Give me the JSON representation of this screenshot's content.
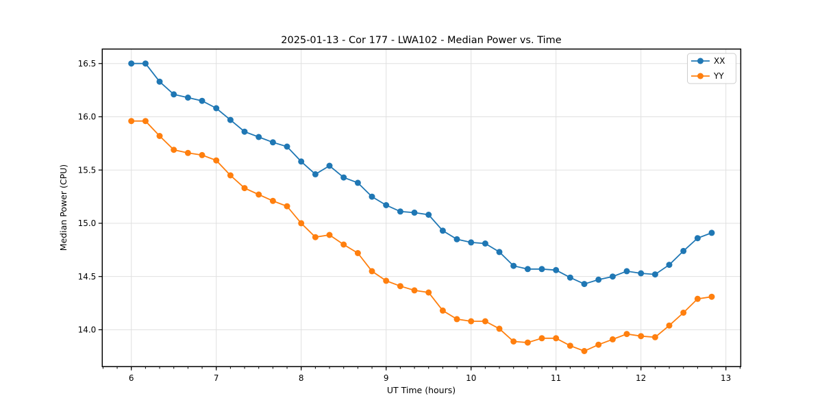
{
  "chart_data": {
    "type": "line",
    "title": "2025-01-13 - Cor 177 - LWA102 - Median Power vs. Time",
    "xlabel": "UT Time (hours)",
    "ylabel": "Median Power (CPU)",
    "xlim": [
      5.658,
      13.175
    ],
    "ylim": [
      13.654,
      16.636
    ],
    "x_major_ticks": [
      6,
      7,
      8,
      9,
      10,
      11,
      12,
      13
    ],
    "x_minor_step": 0.16667,
    "y_major_ticks": [
      14.0,
      14.5,
      15.0,
      15.5,
      16.0,
      16.5
    ],
    "grid": "major-both-axes",
    "grid_color": "#e0e0e0",
    "legend_position": "upper-right",
    "legend_border_color": "#cccccc",
    "marker": "circle",
    "x": [
      6.0,
      6.167,
      6.333,
      6.5,
      6.667,
      6.833,
      7.0,
      7.167,
      7.333,
      7.5,
      7.667,
      7.833,
      8.0,
      8.167,
      8.333,
      8.5,
      8.667,
      8.833,
      9.0,
      9.167,
      9.333,
      9.5,
      9.667,
      9.833,
      10.0,
      10.167,
      10.333,
      10.5,
      10.667,
      10.833,
      11.0,
      11.167,
      11.333,
      11.5,
      11.667,
      11.833,
      12.0,
      12.167,
      12.333,
      12.5,
      12.667,
      12.833
    ],
    "series": [
      {
        "name": "XX",
        "color": "#1f77b4",
        "values": [
          16.5,
          16.5,
          16.33,
          16.21,
          16.18,
          16.15,
          16.08,
          15.97,
          15.86,
          15.81,
          15.76,
          15.72,
          15.58,
          15.46,
          15.54,
          15.43,
          15.38,
          15.25,
          15.17,
          15.11,
          15.1,
          15.08,
          14.93,
          14.85,
          14.82,
          14.81,
          14.73,
          14.6,
          14.57,
          14.57,
          14.56,
          14.49,
          14.43,
          14.47,
          14.5,
          14.55,
          14.53,
          14.52,
          14.61,
          14.74,
          14.86,
          14.91
        ]
      },
      {
        "name": "YY",
        "color": "#ff7f0e",
        "values": [
          15.96,
          15.96,
          15.82,
          15.69,
          15.66,
          15.64,
          15.59,
          15.45,
          15.33,
          15.27,
          15.21,
          15.16,
          15.0,
          14.87,
          14.89,
          14.8,
          14.72,
          14.55,
          14.46,
          14.41,
          14.37,
          14.35,
          14.18,
          14.1,
          14.08,
          14.08,
          14.01,
          13.89,
          13.88,
          13.92,
          13.92,
          13.85,
          13.8,
          13.86,
          13.91,
          13.96,
          13.94,
          13.93,
          14.04,
          14.16,
          14.29,
          14.31
        ]
      }
    ]
  }
}
